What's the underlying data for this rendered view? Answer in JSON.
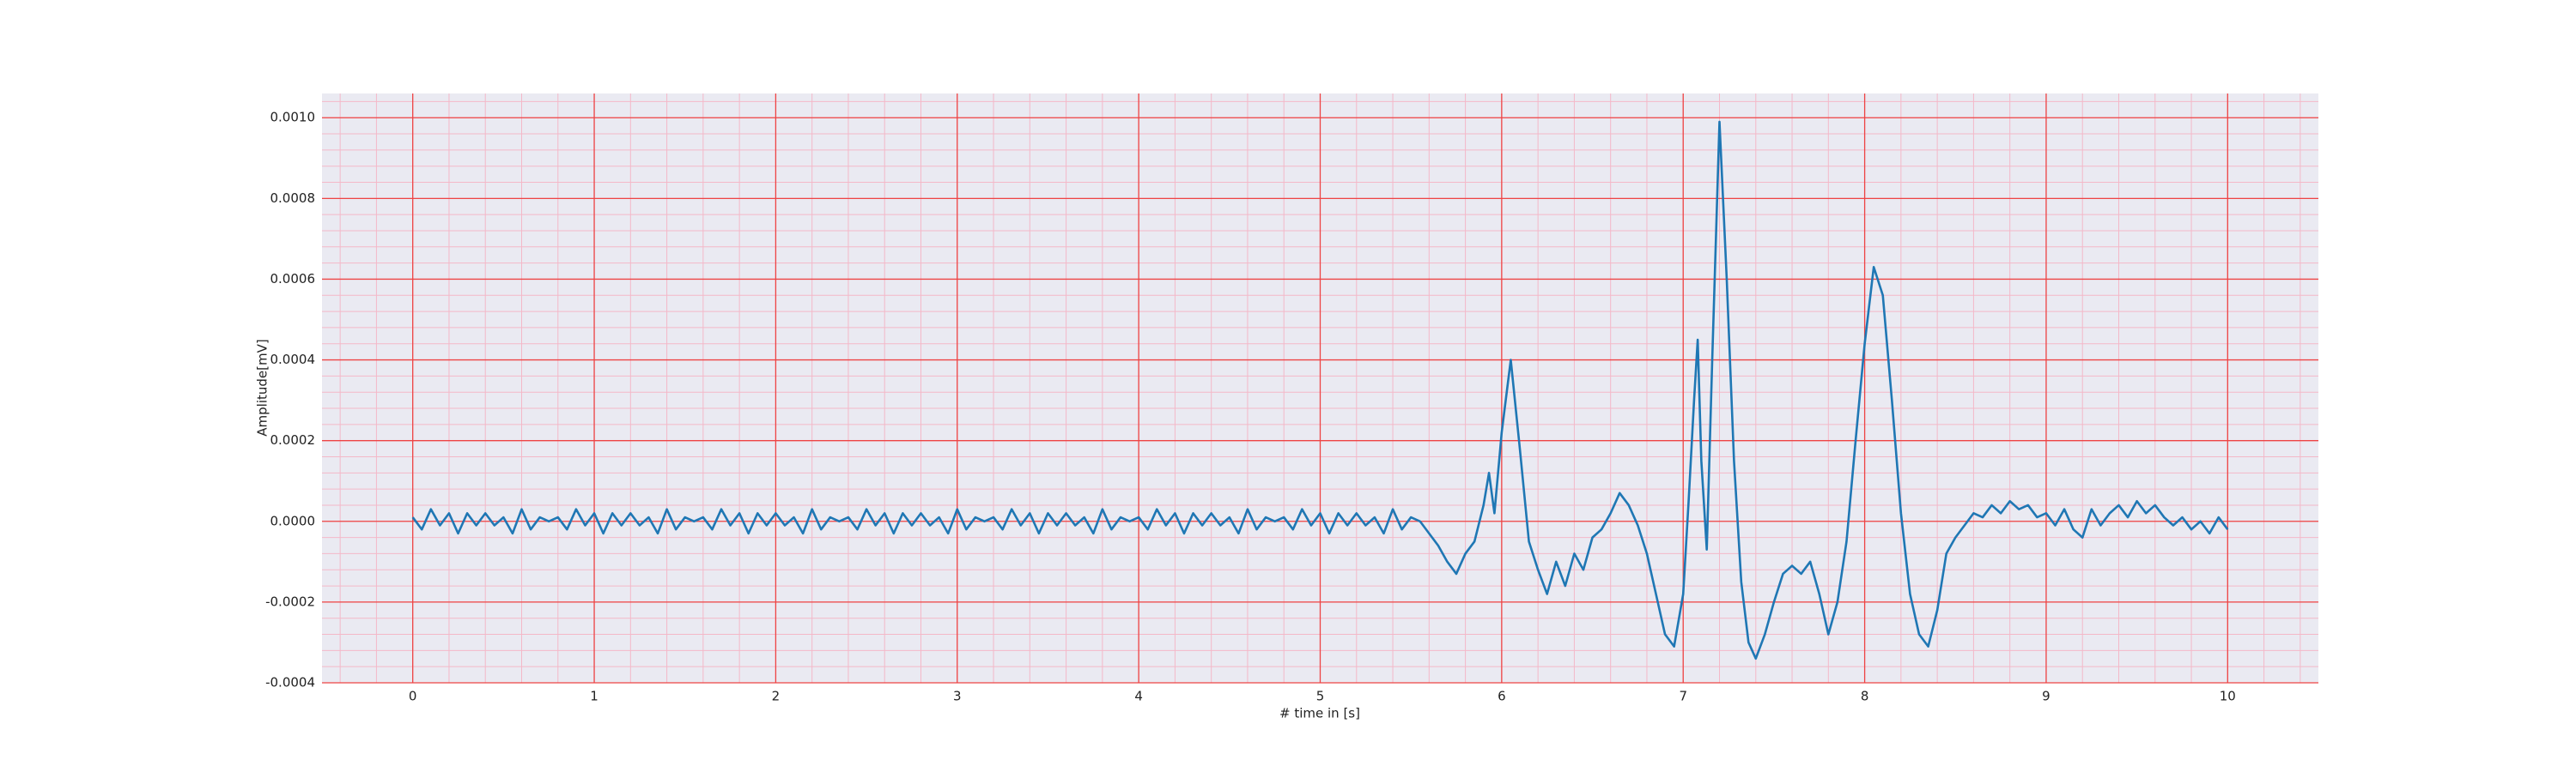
{
  "chart_data": {
    "type": "line",
    "xlabel": "# time in [s]",
    "ylabel": "Amplitude[mV]",
    "xlim": [
      -0.5,
      10.5
    ],
    "ylim": [
      -0.0004,
      0.00106
    ],
    "xticks": [
      0,
      1,
      2,
      3,
      4,
      5,
      6,
      7,
      8,
      9,
      10
    ],
    "yticks": [
      {
        "value": -0.0004,
        "label": "-0.0004"
      },
      {
        "value": -0.0002,
        "label": "-0.0002"
      },
      {
        "value": 0,
        "label": "0.0000"
      },
      {
        "value": 0.0002,
        "label": "0.0002"
      },
      {
        "value": 0.0004,
        "label": "0.0004"
      },
      {
        "value": 0.0006,
        "label": "0.0006"
      },
      {
        "value": 0.0008,
        "label": "0.0008"
      },
      {
        "value": 0.001,
        "label": "0.0010"
      }
    ],
    "grid": true,
    "minor_grid": true,
    "series": [
      {
        "color": "#1f77b4",
        "x": [
          0,
          0.05,
          0.1,
          0.15,
          0.2,
          0.25,
          0.3,
          0.35,
          0.4,
          0.45,
          0.5,
          0.55,
          0.6,
          0.65,
          0.7,
          0.75,
          0.8,
          0.85,
          0.9,
          0.95,
          1.0,
          1.05,
          1.1,
          1.15,
          1.2,
          1.25,
          1.3,
          1.35,
          1.4,
          1.45,
          1.5,
          1.55,
          1.6,
          1.65,
          1.7,
          1.75,
          1.8,
          1.85,
          1.9,
          1.95,
          2.0,
          2.05,
          2.1,
          2.15,
          2.2,
          2.25,
          2.3,
          2.35,
          2.4,
          2.45,
          2.5,
          2.55,
          2.6,
          2.65,
          2.7,
          2.75,
          2.8,
          2.85,
          2.9,
          2.95,
          3.0,
          3.05,
          3.1,
          3.15,
          3.2,
          3.25,
          3.3,
          3.35,
          3.4,
          3.45,
          3.5,
          3.55,
          3.6,
          3.65,
          3.7,
          3.75,
          3.8,
          3.85,
          3.9,
          3.95,
          4.0,
          4.05,
          4.1,
          4.15,
          4.2,
          4.25,
          4.3,
          4.35,
          4.4,
          4.45,
          4.5,
          4.55,
          4.6,
          4.65,
          4.7,
          4.75,
          4.8,
          4.85,
          4.9,
          4.95,
          5.0,
          5.05,
          5.1,
          5.15,
          5.2,
          5.25,
          5.3,
          5.35,
          5.4,
          5.45,
          5.5,
          5.55,
          5.6,
          5.65,
          5.7,
          5.75,
          5.8,
          5.85,
          5.9,
          5.93,
          5.96,
          6.0,
          6.05,
          6.1,
          6.15,
          6.2,
          6.25,
          6.3,
          6.35,
          6.4,
          6.45,
          6.5,
          6.55,
          6.6,
          6.65,
          6.7,
          6.75,
          6.8,
          6.85,
          6.9,
          6.95,
          7.0,
          7.03,
          7.06,
          7.08,
          7.1,
          7.13,
          7.16,
          7.2,
          7.24,
          7.28,
          7.32,
          7.36,
          7.4,
          7.45,
          7.5,
          7.55,
          7.6,
          7.65,
          7.7,
          7.75,
          7.8,
          7.85,
          7.9,
          7.95,
          8.0,
          8.05,
          8.1,
          8.15,
          8.2,
          8.25,
          8.3,
          8.35,
          8.4,
          8.45,
          8.5,
          8.55,
          8.6,
          8.65,
          8.7,
          8.75,
          8.8,
          8.85,
          8.9,
          8.95,
          9.0,
          9.05,
          9.1,
          9.15,
          9.2,
          9.25,
          9.3,
          9.35,
          9.4,
          9.45,
          9.5,
          9.55,
          9.6,
          9.65,
          9.7,
          9.75,
          9.8,
          9.85,
          9.9,
          9.95,
          10.0
        ],
        "values": [
          1e-05,
          -2e-05,
          3e-05,
          -1e-05,
          2e-05,
          -3e-05,
          2e-05,
          -1e-05,
          2e-05,
          -1e-05,
          1e-05,
          -3e-05,
          3e-05,
          -2e-05,
          1e-05,
          0,
          1e-05,
          -2e-05,
          3e-05,
          -1e-05,
          2e-05,
          -3e-05,
          2e-05,
          -1e-05,
          2e-05,
          -1e-05,
          1e-05,
          -3e-05,
          3e-05,
          -2e-05,
          1e-05,
          0,
          1e-05,
          -2e-05,
          3e-05,
          -1e-05,
          2e-05,
          -3e-05,
          2e-05,
          -1e-05,
          2e-05,
          -1e-05,
          1e-05,
          -3e-05,
          3e-05,
          -2e-05,
          1e-05,
          0,
          1e-05,
          -2e-05,
          3e-05,
          -1e-05,
          2e-05,
          -3e-05,
          2e-05,
          -1e-05,
          2e-05,
          -1e-05,
          1e-05,
          -3e-05,
          3e-05,
          -2e-05,
          1e-05,
          0,
          1e-05,
          -2e-05,
          3e-05,
          -1e-05,
          2e-05,
          -3e-05,
          2e-05,
          -1e-05,
          2e-05,
          -1e-05,
          1e-05,
          -3e-05,
          3e-05,
          -2e-05,
          1e-05,
          0,
          1e-05,
          -2e-05,
          3e-05,
          -1e-05,
          2e-05,
          -3e-05,
          2e-05,
          -1e-05,
          2e-05,
          -1e-05,
          1e-05,
          -3e-05,
          3e-05,
          -2e-05,
          1e-05,
          0,
          1e-05,
          -2e-05,
          3e-05,
          -1e-05,
          2e-05,
          -3e-05,
          2e-05,
          -1e-05,
          2e-05,
          -1e-05,
          1e-05,
          -3e-05,
          3e-05,
          -2e-05,
          1e-05,
          0,
          -3e-05,
          -6e-05,
          -0.0001,
          -0.00013,
          -8e-05,
          -5e-05,
          4e-05,
          0.00012,
          2e-05,
          0.00022,
          0.0004,
          0.00018,
          -5e-05,
          -0.00012,
          -0.00018,
          -0.0001,
          -0.00016,
          -8e-05,
          -0.00012,
          -4e-05,
          -2e-05,
          2e-05,
          7e-05,
          4e-05,
          -1e-05,
          -8e-05,
          -0.00018,
          -0.00028,
          -0.00031,
          -0.00018,
          5e-05,
          0.0003,
          0.00045,
          0.00015,
          -7e-05,
          0.0004,
          0.00099,
          0.0006,
          0.00015,
          -0.00015,
          -0.0003,
          -0.00034,
          -0.00028,
          -0.0002,
          -0.00013,
          -0.00011,
          -0.00013,
          -0.0001,
          -0.00018,
          -0.00028,
          -0.0002,
          -5e-05,
          0.0002,
          0.00044,
          0.00063,
          0.00056,
          0.0003,
          2e-05,
          -0.00018,
          -0.00028,
          -0.00031,
          -0.00022,
          -8e-05,
          -4e-05,
          -1e-05,
          2e-05,
          1e-05,
          4e-05,
          2e-05,
          5e-05,
          3e-05,
          4e-05,
          1e-05,
          2e-05,
          -1e-05,
          3e-05,
          -2e-05,
          -4e-05,
          3e-05,
          -1e-05,
          2e-05,
          4e-05,
          1e-05,
          5e-05,
          2e-05,
          4e-05,
          1e-05,
          -1e-05,
          1e-05,
          -2e-05,
          0,
          -3e-05,
          1e-05,
          -2e-05
        ]
      }
    ]
  }
}
